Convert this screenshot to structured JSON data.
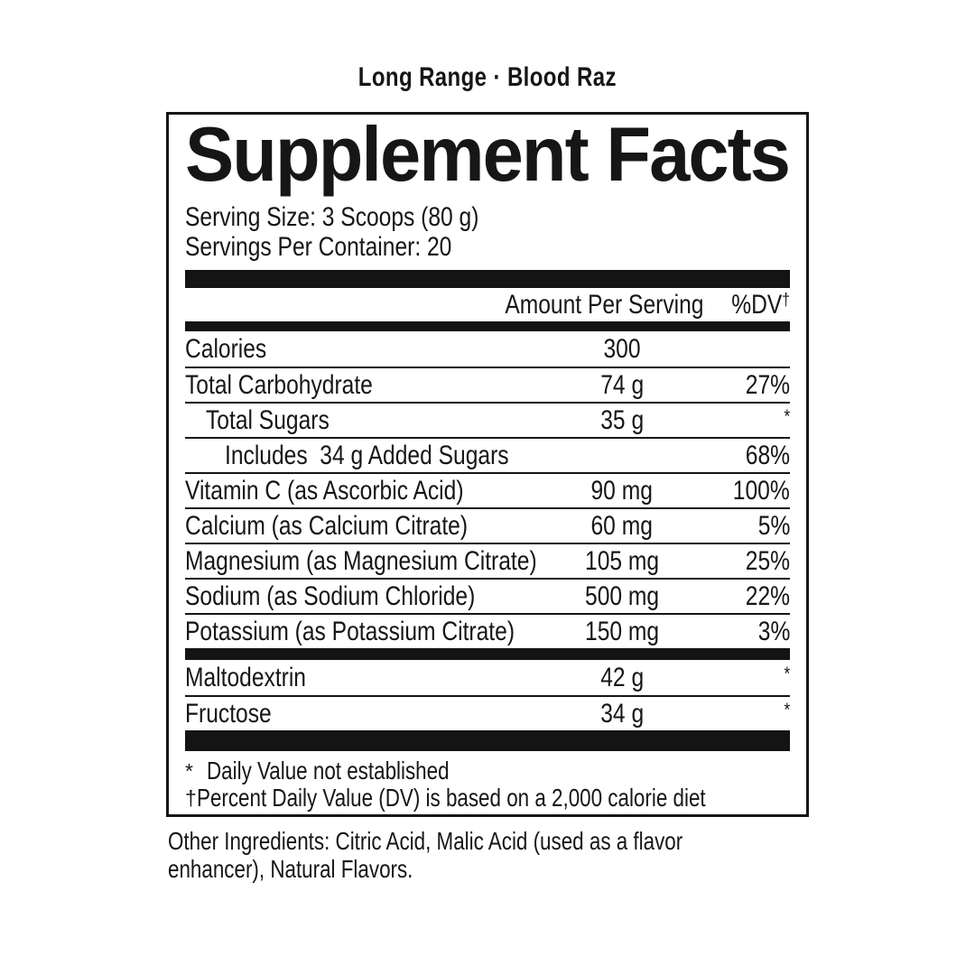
{
  "page": {
    "background": "#ffffff",
    "ink": "#161616"
  },
  "product_header": {
    "text": "Long Range · Blood Raz"
  },
  "supplement_facts": {
    "title": "Supplement Facts",
    "serving_size": "Serving Size: 3 Scoops (80 g)",
    "servings_per_container": "Servings Per Container: 20",
    "header": {
      "amount": "Amount Per Serving",
      "dv": "%DV",
      "dv_footnote_marker": "†"
    },
    "sections": [
      {
        "rows": [
          {
            "name": "Calories",
            "amount": "300",
            "dv": "",
            "indent": 0
          },
          {
            "name": "Total Carbohydrate",
            "amount": "74 g",
            "dv": "27%",
            "indent": 0
          },
          {
            "name": "Total Sugars",
            "amount": "35 g",
            "dv": "*",
            "indent": 1
          },
          {
            "name": "Includes  34 g Added Sugars",
            "amount": "",
            "dv": "68%",
            "indent": 2
          },
          {
            "name": "Vitamin C (as Ascorbic Acid)",
            "amount": "90 mg",
            "dv": "100%",
            "indent": 0
          },
          {
            "name": "Calcium (as Calcium Citrate)",
            "amount": "60 mg",
            "dv": "5%",
            "indent": 0
          },
          {
            "name": "Magnesium (as Magnesium Citrate)",
            "amount": "105 mg",
            "dv": "25%",
            "indent": 0
          },
          {
            "name": "Sodium (as Sodium Chloride)",
            "amount": "500 mg",
            "dv": "22%",
            "indent": 0
          },
          {
            "name": "Potassium (as Potassium Citrate)",
            "amount": "150 mg",
            "dv": "3%",
            "indent": 0
          }
        ]
      },
      {
        "rows": [
          {
            "name": "Maltodextrin",
            "amount": "42 g",
            "dv": "*",
            "indent": 0
          },
          {
            "name": "Fructose",
            "amount": "34 g",
            "dv": "*",
            "indent": 0
          }
        ]
      }
    ],
    "footnotes": [
      {
        "marker": "*",
        "text": "Daily Value not established"
      },
      {
        "marker": "†",
        "text": "Percent Daily Value (DV) is based on a 2,000 calorie diet"
      }
    ]
  },
  "other_ingredients": {
    "lines": [
      "Other Ingredients: Citric Acid, Malic Acid (used as a flavor",
      "enhancer), Natural Flavors."
    ]
  }
}
